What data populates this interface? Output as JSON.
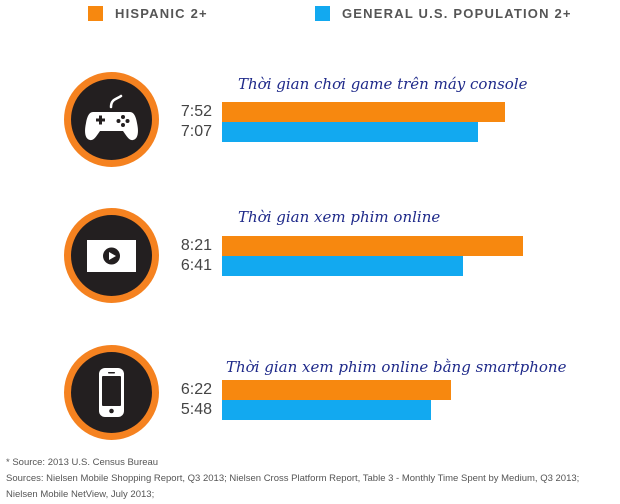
{
  "legend": {
    "hispanic_label": "HISPANIC 2+",
    "general_label": "GENERAL U.S. POPULATION 2+"
  },
  "colors": {
    "hispanic": "#f7880f",
    "general": "#12a9f0",
    "badge_border": "#f58220",
    "badge_fill": "#231f20",
    "title": "#1f2a8a"
  },
  "chart_data": {
    "type": "bar",
    "orientation": "horizontal",
    "series": [
      {
        "name": "HISPANIC 2+",
        "color": "#f7880f"
      },
      {
        "name": "GENERAL U.S. POPULATION 2+",
        "color": "#12a9f0"
      }
    ],
    "groups": [
      {
        "title": "Thời gian chơi game trên máy console",
        "icon": "gamepad-icon",
        "values": [
          "7:52",
          "7:07"
        ]
      },
      {
        "title": "Thời gian xem phim online",
        "icon": "video-player-icon",
        "values": [
          "8:21",
          "6:41"
        ]
      },
      {
        "title": "Thời gian xem phim online bằng smartphone",
        "icon": "smartphone-icon",
        "values": [
          "6:22",
          "5:48"
        ]
      }
    ]
  },
  "notes": [
    "* Source: 2013 U.S. Census Bureau",
    "Sources: Nielsen Mobile Shopping Report, Q3 2013; Nielsen Cross Platform Report, Table 3 - Monthly Time Spent by Medium, Q3 2013;",
    "Nielsen Mobile NetView, July 2013;"
  ]
}
